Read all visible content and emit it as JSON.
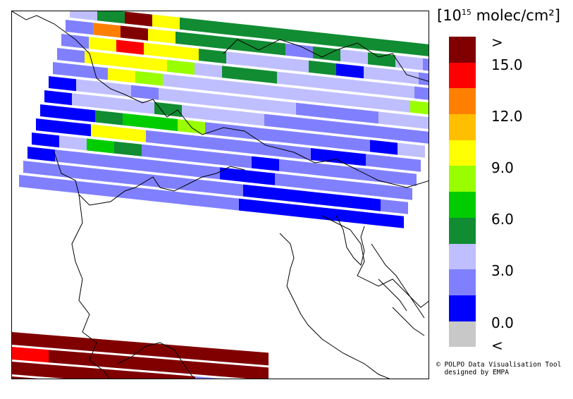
{
  "legend": {
    "title_main": "[10",
    "title_exp": "15",
    "title_unit": " molec/cm",
    "title_sq": "²",
    "title_close": "]",
    "bins": [
      {
        "name": "above-max",
        "color": "#800000"
      },
      {
        "name": "bin-15",
        "color": "#ff0000"
      },
      {
        "name": "bin-13.5",
        "color": "#ff7f00"
      },
      {
        "name": "bin-12",
        "color": "#ffbf00"
      },
      {
        "name": "bin-10.5",
        "color": "#ffff00"
      },
      {
        "name": "bin-9",
        "color": "#99ff00"
      },
      {
        "name": "bin-7.5",
        "color": "#00cc00"
      },
      {
        "name": "bin-6",
        "color": "#118c33"
      },
      {
        "name": "bin-4.5",
        "color": "#bfbfff"
      },
      {
        "name": "bin-3",
        "color": "#8080ff"
      },
      {
        "name": "bin-1.5",
        "color": "#0000ff"
      },
      {
        "name": "below-min",
        "color": "#c8c8c8"
      }
    ],
    "labels": [
      ">",
      "15.0",
      "12.0",
      "9.0",
      "6.0",
      "3.0",
      "0.0",
      "<"
    ]
  },
  "credit": {
    "line1": "© POLPO Data Visualisation Tool",
    "line2": "  designed by EMPA"
  },
  "swath_top": {
    "rows": [
      [
        "8",
        "7",
        "0",
        "4",
        "7",
        "7",
        "7",
        "7",
        "7",
        "7",
        "7",
        "7",
        "7",
        "7"
      ],
      [
        "9",
        "2",
        "0",
        "4",
        "7",
        "7",
        "7",
        "7",
        "9",
        "7",
        "8",
        "7",
        "8",
        "9"
      ],
      [
        "9",
        "4",
        "1",
        "4",
        "4",
        "7",
        "8",
        "8",
        "8",
        "7",
        "10",
        "8",
        "8",
        "9"
      ],
      [
        "9",
        "4",
        "4",
        "4",
        "5",
        "8",
        "7",
        "7",
        "8",
        "8",
        "8",
        "8",
        "8",
        "9"
      ],
      [
        "9",
        "9",
        "4",
        "5",
        "8",
        "8",
        "8",
        "8",
        "8",
        "8",
        "8",
        "8",
        "8",
        "5"
      ],
      [
        "10",
        "8",
        "8",
        "9",
        "8",
        "8",
        "8",
        "8",
        "8",
        "9",
        "9",
        "9",
        "8",
        "8"
      ],
      [
        "10",
        "8",
        "8",
        "8",
        "7",
        "8",
        "8",
        "8",
        "9",
        "9",
        "9",
        "9",
        "9",
        "9"
      ],
      [
        "10",
        "10",
        "7",
        "6",
        "6",
        "5",
        "9",
        "9",
        "9",
        "9",
        "9",
        "9",
        "10",
        "8"
      ],
      [
        "10",
        "10",
        "4",
        "4",
        "9",
        "9",
        "9",
        "9",
        "9",
        "9",
        "10",
        "10",
        "9",
        "9"
      ],
      [
        "10",
        "8",
        "6",
        "7",
        "9",
        "9",
        "9",
        "9",
        "10",
        "9",
        "9",
        "9",
        "9",
        "9"
      ],
      [
        "10",
        "9",
        "9",
        "9",
        "9",
        "9",
        "9",
        "10",
        "10",
        "9",
        "9",
        "9",
        "9",
        "9"
      ],
      [
        "9",
        "9",
        "9",
        "9",
        "9",
        "9",
        "9",
        "9",
        "10",
        "10",
        "10",
        "10",
        "10",
        "9"
      ],
      [
        "9",
        "9",
        "9",
        "9",
        "9",
        "9",
        "9",
        "9",
        "10",
        "10",
        "10",
        "10",
        "10",
        "10"
      ]
    ]
  },
  "swath_bottom": {
    "rows": [
      [
        "0",
        "0",
        "0",
        "0",
        "0",
        "0",
        "0"
      ],
      [
        "1",
        "0",
        "0",
        "0",
        "0",
        "0",
        "0"
      ],
      [
        "0",
        "0",
        "0",
        "0",
        "0",
        "9",
        "10"
      ],
      [
        "0",
        "0",
        "0",
        "0",
        "0",
        "10",
        "10"
      ]
    ]
  }
}
